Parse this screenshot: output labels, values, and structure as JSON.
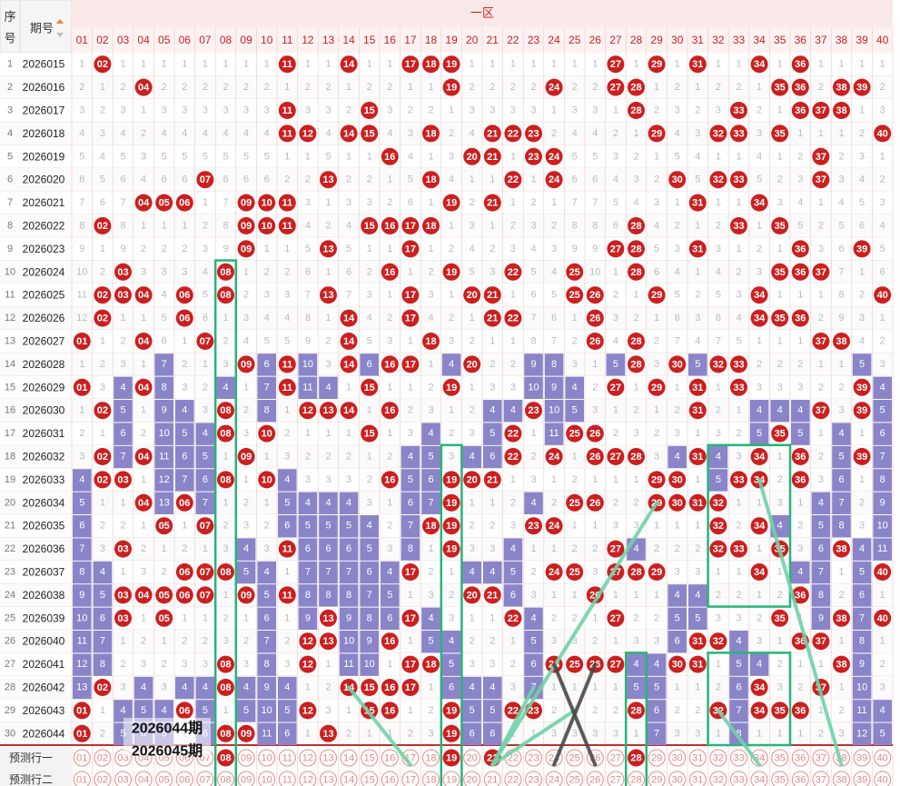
{
  "header": {
    "col_seq": "序号",
    "col_period": "期号",
    "zone_title": "一区",
    "numbers": [
      "01",
      "02",
      "03",
      "04",
      "05",
      "06",
      "07",
      "08",
      "09",
      "10",
      "11",
      "12",
      "13",
      "14",
      "15",
      "16",
      "17",
      "18",
      "19",
      "20",
      "21",
      "22",
      "23",
      "24",
      "25",
      "26",
      "27",
      "28",
      "29",
      "30",
      "31",
      "32",
      "33",
      "34",
      "35",
      "36",
      "37",
      "38",
      "39",
      "40"
    ]
  },
  "icons": {
    "sort": "sort-arrows-icon"
  },
  "colors": {
    "hit": "#cc1f1f",
    "grid": "#f0c8c8",
    "bar": "#8a85c9",
    "header_bg": "#fbe9e9",
    "box": "#27b47a",
    "line": "#6fd3a8",
    "cross": "#4a4a4a"
  },
  "rows": [
    {
      "seq": "1",
      "period": "2026015",
      "hits": [
        2,
        11,
        14,
        17,
        18,
        19,
        27,
        29,
        31,
        34,
        36
      ]
    },
    {
      "seq": "2",
      "period": "2026016",
      "hits": [
        4,
        19,
        24,
        27,
        28,
        35,
        36,
        38,
        39
      ]
    },
    {
      "seq": "3",
      "period": "2026017",
      "hits": [
        11,
        15,
        28,
        33,
        36,
        37,
        38
      ]
    },
    {
      "seq": "4",
      "period": "2026018",
      "hits": [
        11,
        12,
        14,
        15,
        18,
        21,
        22,
        23,
        29,
        32,
        33,
        35,
        40
      ]
    },
    {
      "seq": "5",
      "period": "2026019",
      "hits": [
        16,
        20,
        21,
        23,
        24,
        37
      ]
    },
    {
      "seq": "6",
      "period": "2026020",
      "hits": [
        7,
        13,
        18,
        22,
        24,
        30,
        32,
        33,
        37
      ]
    },
    {
      "seq": "7",
      "period": "2026021",
      "hits": [
        4,
        5,
        6,
        9,
        10,
        11,
        19,
        21,
        31,
        34
      ]
    },
    {
      "seq": "8",
      "period": "2026022",
      "hits": [
        2,
        9,
        10,
        11,
        15,
        16,
        17,
        18,
        28,
        33,
        35
      ]
    },
    {
      "seq": "9",
      "period": "2026023",
      "hits": [
        9,
        13,
        17,
        27,
        28,
        31,
        36,
        39
      ]
    },
    {
      "seq": "10",
      "period": "2026024",
      "hits": [
        3,
        8,
        16,
        19,
        22,
        25,
        28,
        35,
        36,
        37
      ]
    },
    {
      "seq": "11",
      "period": "2026025",
      "hits": [
        2,
        3,
        4,
        6,
        8,
        13,
        17,
        20,
        21,
        25,
        26,
        29,
        34,
        40
      ]
    },
    {
      "seq": "12",
      "period": "2026026",
      "hits": [
        2,
        6,
        14,
        17,
        21,
        22,
        26,
        34,
        35,
        36
      ]
    },
    {
      "seq": "13",
      "period": "2026027",
      "hits": [
        1,
        4,
        7,
        14,
        18,
        26,
        28,
        37,
        38
      ]
    },
    {
      "seq": "14",
      "period": "2026028",
      "hits": [
        9,
        11,
        14,
        16,
        17,
        20,
        28,
        30,
        32,
        33
      ]
    },
    {
      "seq": "15",
      "period": "2026029",
      "hits": [
        1,
        4,
        11,
        15,
        19,
        27,
        29,
        31,
        33,
        39
      ]
    },
    {
      "seq": "16",
      "period": "2026030",
      "hits": [
        2,
        8,
        12,
        13,
        14,
        16,
        23,
        31,
        37,
        39
      ]
    },
    {
      "seq": "17",
      "period": "2026031",
      "hits": [
        8,
        10,
        15,
        22,
        25,
        26,
        35
      ]
    },
    {
      "seq": "18",
      "period": "2026032",
      "hits": [
        2,
        4,
        9,
        22,
        24,
        26,
        27,
        28,
        31,
        34,
        36,
        39
      ]
    },
    {
      "seq": "19",
      "period": "2026033",
      "hits": [
        2,
        3,
        8,
        10,
        16,
        19,
        20,
        21,
        29,
        30,
        33,
        34,
        36
      ]
    },
    {
      "seq": "20",
      "period": "2026034",
      "hits": [
        4,
        6,
        19,
        25,
        26,
        29,
        30,
        31,
        32
      ]
    },
    {
      "seq": "21",
      "period": "2026035",
      "hits": [
        5,
        7,
        18,
        19,
        23,
        24,
        32,
        34
      ]
    },
    {
      "seq": "22",
      "period": "2026036",
      "hits": [
        3,
        11,
        19,
        27,
        32,
        33,
        35,
        38
      ]
    },
    {
      "seq": "23",
      "period": "2026037",
      "hits": [
        6,
        7,
        8,
        17,
        24,
        25,
        27,
        28,
        29,
        34,
        40
      ]
    },
    {
      "seq": "24",
      "period": "2026038",
      "hits": [
        3,
        4,
        5,
        6,
        7,
        9,
        11,
        20,
        21,
        26,
        36
      ]
    },
    {
      "seq": "25",
      "period": "2026039",
      "hits": [
        3,
        5,
        13,
        17,
        22,
        27,
        35,
        38,
        40
      ]
    },
    {
      "seq": "26",
      "period": "2026040",
      "hits": [
        12,
        13,
        16,
        31,
        32,
        36,
        37
      ]
    },
    {
      "seq": "27",
      "period": "2026041",
      "hits": [
        8,
        12,
        17,
        18,
        24,
        25,
        26,
        27,
        30,
        31,
        38
      ]
    },
    {
      "seq": "28",
      "period": "2026042",
      "hits": [
        2,
        8,
        14,
        15,
        16,
        17,
        34,
        37
      ]
    },
    {
      "seq": "29",
      "period": "2026043",
      "hits": [
        1,
        6,
        12,
        15,
        16,
        19,
        22,
        23,
        28,
        32,
        34,
        35,
        36
      ]
    },
    {
      "seq": "30",
      "period": "2026044",
      "hits": [
        1,
        8,
        9,
        13,
        19
      ]
    }
  ],
  "predict_rows": [
    {
      "label": "预测行一",
      "hits": [
        8,
        19,
        21,
        28
      ]
    },
    {
      "label": "预测行二",
      "hits": []
    }
  ],
  "overlay_labels": {
    "current": "2026044期",
    "next": "2026045期"
  }
}
